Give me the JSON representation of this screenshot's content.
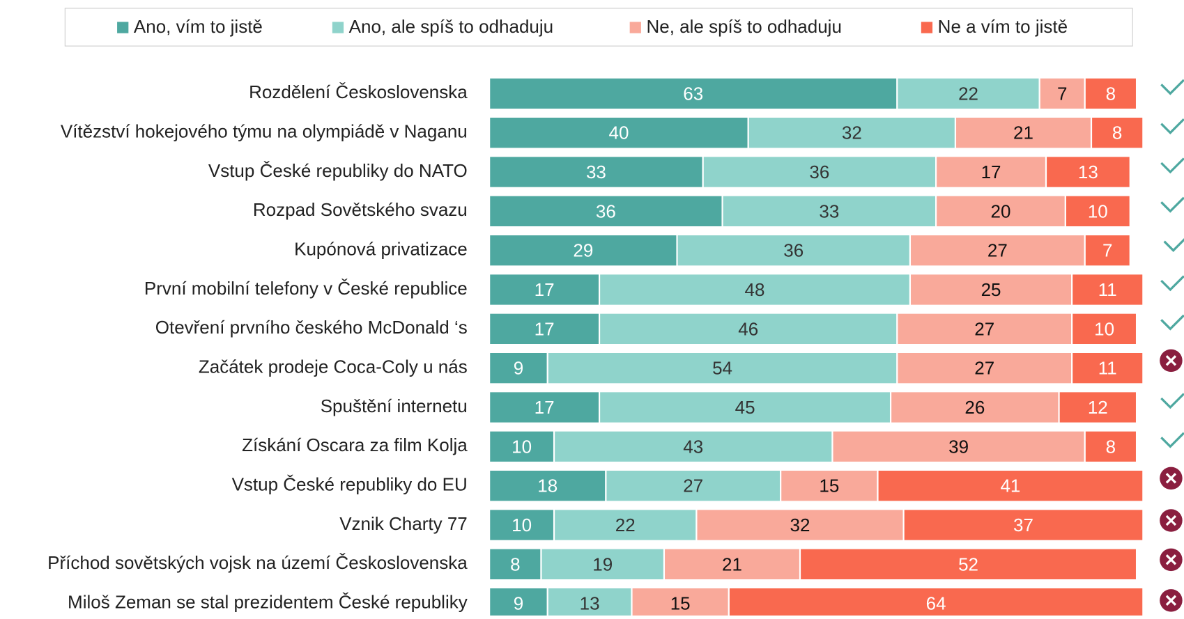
{
  "chart_data": {
    "type": "stacked-bar-horizontal",
    "categories": [
      "Rozdělení Československa",
      "Vítězství hokejového týmu na olympiádě v Naganu",
      "Vstup České republiky do NATO",
      "Rozpad Sovětského svazu",
      "Kupónová privatizace",
      "První mobilní telefony v České republice",
      "Otevření prvního českého McDonald ‘s",
      "Začátek prodeje Coca-Coly u nás",
      "Spuštění internetu",
      "Získání Oscara za film Kolja",
      "Vstup České republiky do EU",
      "Vznik Charty 77",
      "Příchod sovětských vojsk na území Československa",
      "Miloš Zeman se stal prezidentem České republiky"
    ],
    "series": [
      {
        "name": "Ano, vím to jistě",
        "color": "#4ea8a0",
        "label_color": "#ffffff",
        "values": [
          63,
          40,
          33,
          36,
          29,
          17,
          17,
          9,
          17,
          10,
          18,
          10,
          8,
          9
        ]
      },
      {
        "name": "Ano, ale spíš to odhaduju",
        "color": "#8fd3cb",
        "label_color": "#333333",
        "values": [
          22,
          32,
          36,
          33,
          36,
          48,
          46,
          54,
          45,
          43,
          27,
          22,
          19,
          13
        ]
      },
      {
        "name": "Ne, ale spíš to odhaduju",
        "color": "#f9a99a",
        "label_color": "#111111",
        "values": [
          7,
          21,
          17,
          20,
          27,
          25,
          27,
          27,
          26,
          39,
          15,
          32,
          21,
          15
        ]
      },
      {
        "name": "Ne a vím to jistě",
        "color": "#f9694f",
        "label_color": "#ffffff",
        "values": [
          8,
          8,
          13,
          10,
          7,
          11,
          10,
          11,
          12,
          8,
          41,
          37,
          52,
          64
        ]
      }
    ],
    "xlim": [
      0,
      101
    ],
    "legend": "top"
  }
}
